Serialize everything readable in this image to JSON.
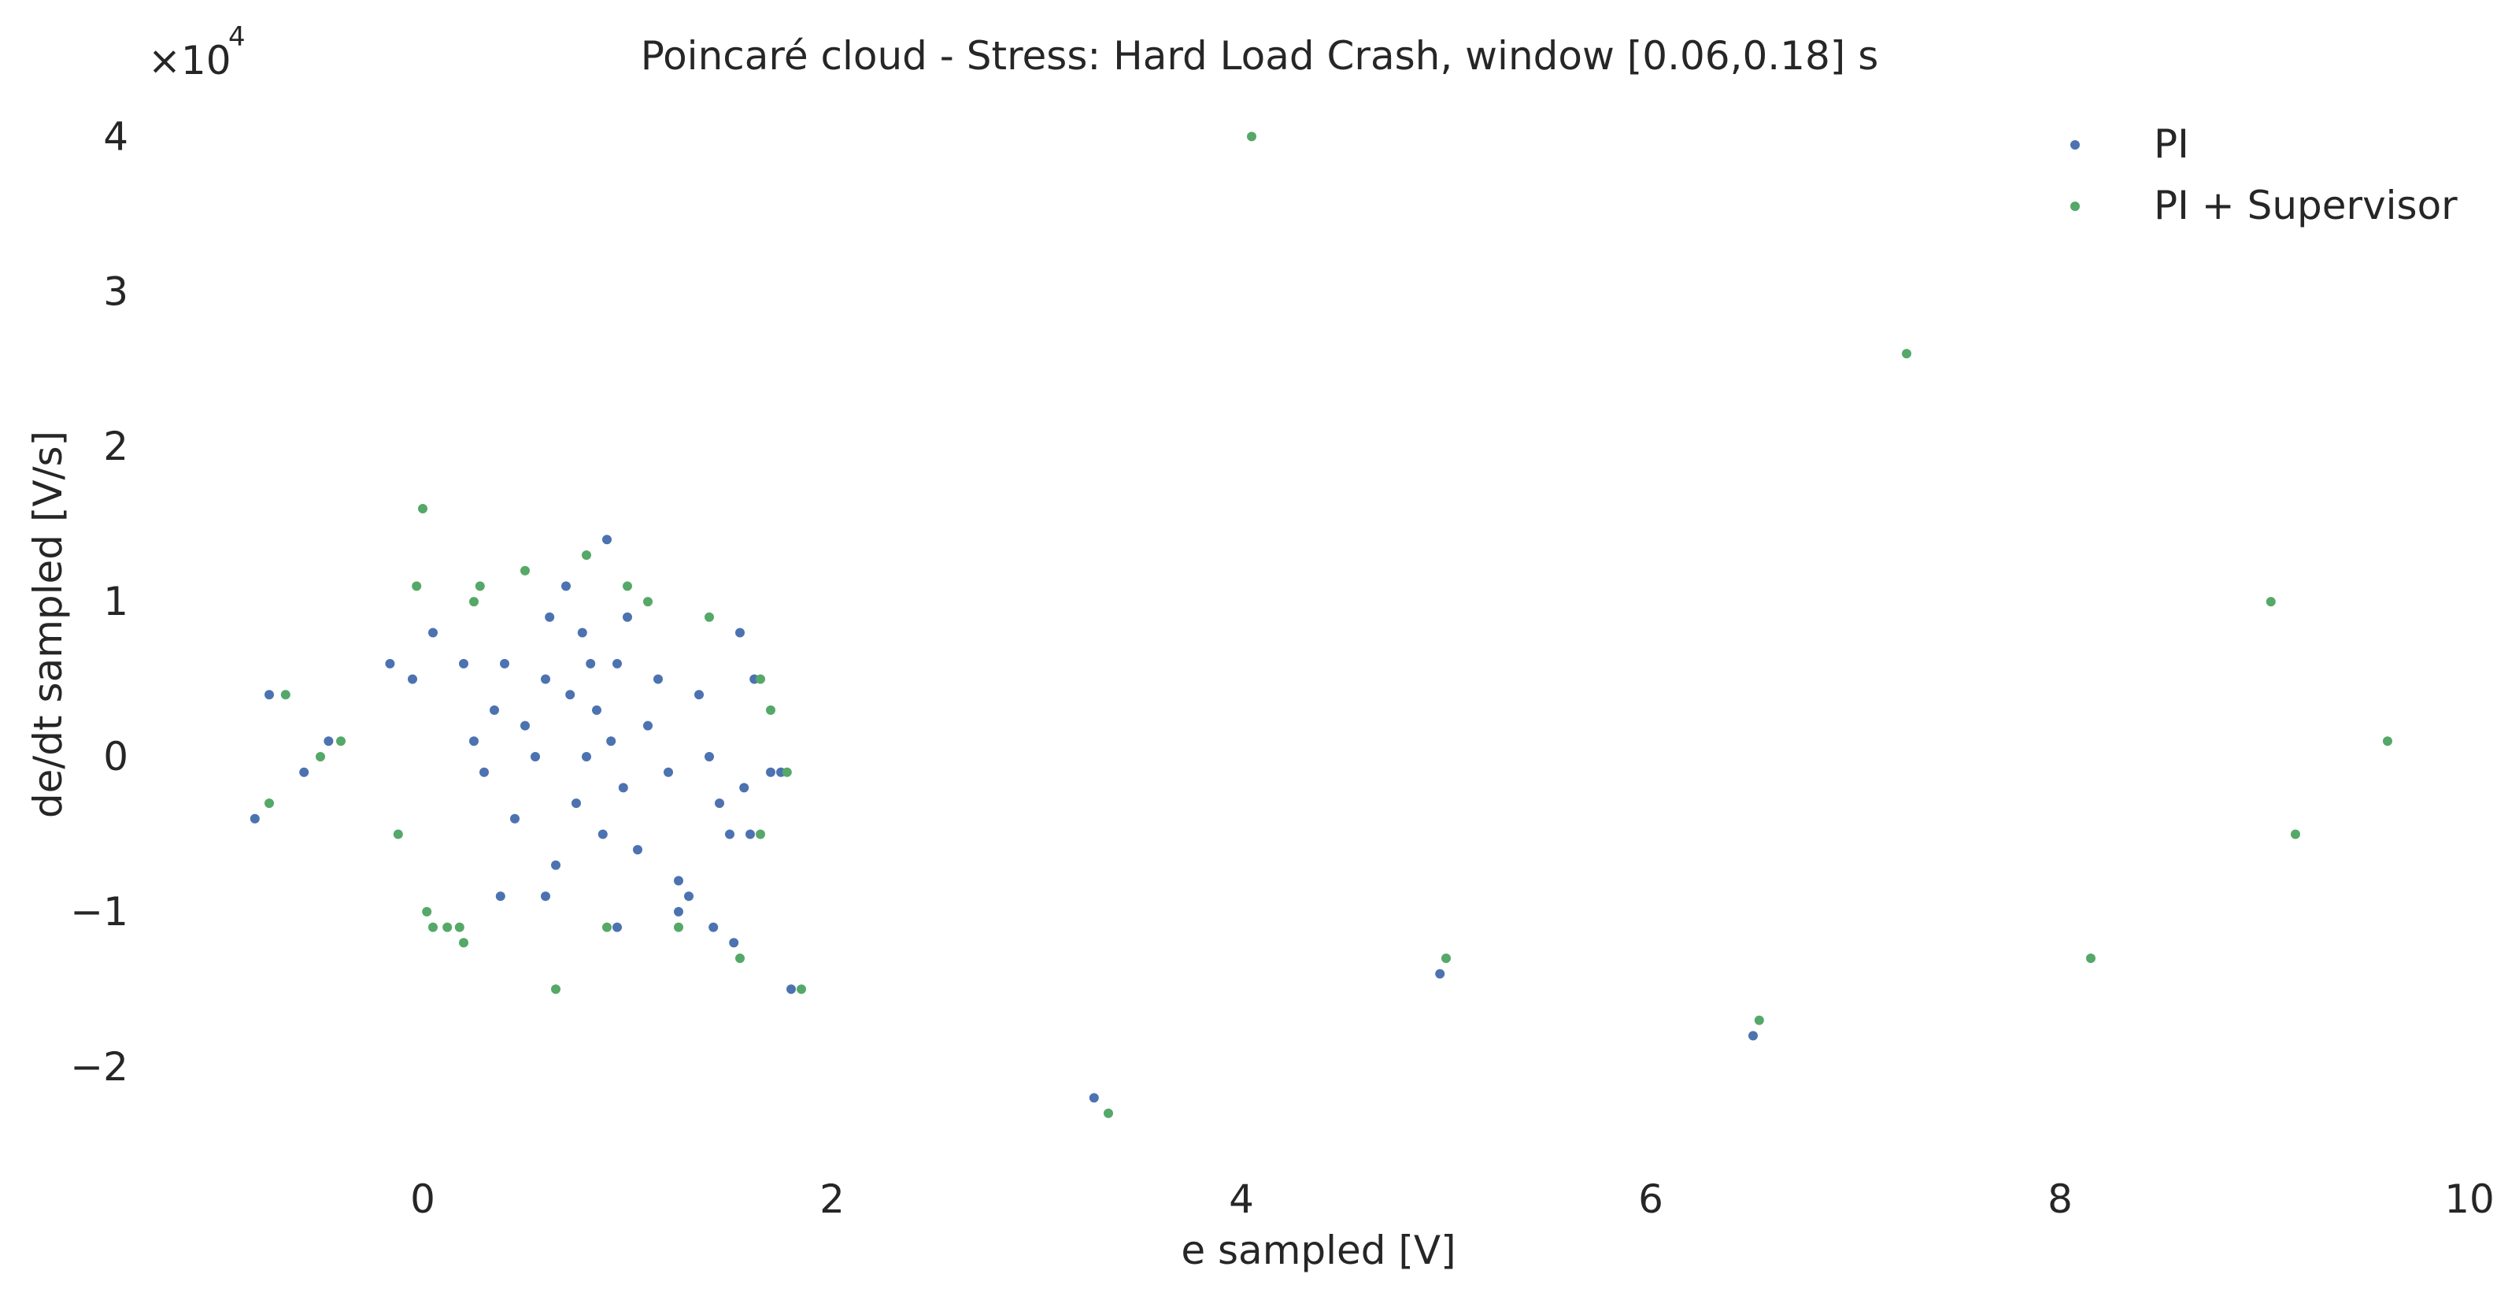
{
  "chart_data": {
    "type": "scatter",
    "title": "Poincaré cloud - Stress: Hard Load Crash, window [0.06,0.18] s",
    "xlabel": "e sampled [V]",
    "ylabel": "de/dt sampled [V/s]",
    "y_multiplier_label": "×10",
    "y_multiplier_exponent": "4",
    "xlim": [
      -1.5,
      10
    ],
    "ylim": [
      -27000,
      42000
    ],
    "xticks": [
      0,
      2,
      4,
      6,
      8,
      10
    ],
    "xtick_labels": [
      "0",
      "2",
      "4",
      "6",
      "8",
      "10"
    ],
    "yticks": [
      -20000,
      -10000,
      0,
      10000,
      20000,
      30000,
      40000
    ],
    "ytick_labels": [
      "−2",
      "−1",
      "0",
      "1",
      "2",
      "3",
      "4"
    ],
    "grid": false,
    "legend_position": "top-right",
    "series": [
      {
        "name": "PI",
        "color": "#4C72B0",
        "points": [
          [
            -0.82,
            -4000
          ],
          [
            -0.75,
            4000
          ],
          [
            -0.58,
            -1000
          ],
          [
            -0.46,
            1000
          ],
          [
            -0.16,
            6000
          ],
          [
            -0.05,
            5000
          ],
          [
            0.05,
            8000
          ],
          [
            0.2,
            6000
          ],
          [
            0.25,
            1000
          ],
          [
            0.3,
            -1000
          ],
          [
            0.35,
            3000
          ],
          [
            0.4,
            6000
          ],
          [
            0.45,
            -4000
          ],
          [
            0.5,
            2000
          ],
          [
            0.55,
            0
          ],
          [
            0.6,
            5000
          ],
          [
            0.62,
            9000
          ],
          [
            0.65,
            -7000
          ],
          [
            0.7,
            11000
          ],
          [
            0.72,
            4000
          ],
          [
            0.75,
            -3000
          ],
          [
            0.78,
            8000
          ],
          [
            0.8,
            0
          ],
          [
            0.82,
            6000
          ],
          [
            0.85,
            3000
          ],
          [
            0.88,
            -5000
          ],
          [
            0.9,
            14000
          ],
          [
            0.92,
            1000
          ],
          [
            0.95,
            6000
          ],
          [
            0.98,
            -2000
          ],
          [
            1.0,
            9000
          ],
          [
            1.05,
            -6000
          ],
          [
            1.1,
            2000
          ],
          [
            1.15,
            5000
          ],
          [
            1.2,
            -1000
          ],
          [
            1.25,
            -8000
          ],
          [
            1.3,
            -9000
          ],
          [
            1.35,
            4000
          ],
          [
            1.4,
            0
          ],
          [
            1.45,
            -3000
          ],
          [
            1.5,
            -5000
          ],
          [
            1.55,
            8000
          ],
          [
            0.38,
            -9000
          ],
          [
            0.6,
            -9000
          ],
          [
            0.95,
            -11000
          ],
          [
            1.25,
            -10000
          ],
          [
            1.42,
            -11000
          ],
          [
            1.52,
            -12000
          ],
          [
            1.57,
            -2000
          ],
          [
            1.6,
            -5000
          ],
          [
            1.62,
            5000
          ],
          [
            1.7,
            -1000
          ],
          [
            1.75,
            -1000
          ],
          [
            1.8,
            -15000
          ],
          [
            3.28,
            -22000
          ],
          [
            4.97,
            -14000
          ],
          [
            6.5,
            -18000
          ]
        ]
      },
      {
        "name": "PI + Supervisor",
        "color": "#55A868",
        "points": [
          [
            -0.75,
            -3000
          ],
          [
            -0.67,
            4000
          ],
          [
            -0.5,
            0
          ],
          [
            -0.4,
            1000
          ],
          [
            -0.12,
            -5000
          ],
          [
            -0.03,
            11000
          ],
          [
            0.0,
            16000
          ],
          [
            0.02,
            -10000
          ],
          [
            0.05,
            -11000
          ],
          [
            0.12,
            -11000
          ],
          [
            0.18,
            -11000
          ],
          [
            0.2,
            -12000
          ],
          [
            0.25,
            10000
          ],
          [
            0.28,
            11000
          ],
          [
            0.5,
            12000
          ],
          [
            0.65,
            -15000
          ],
          [
            0.8,
            13000
          ],
          [
            0.9,
            -11000
          ],
          [
            1.0,
            11000
          ],
          [
            1.1,
            10000
          ],
          [
            1.25,
            -11000
          ],
          [
            1.4,
            9000
          ],
          [
            1.55,
            -13000
          ],
          [
            1.65,
            5000
          ],
          [
            1.7,
            3000
          ],
          [
            1.65,
            -5000
          ],
          [
            1.78,
            -1000
          ],
          [
            1.85,
            -15000
          ],
          [
            3.35,
            -23000
          ],
          [
            4.05,
            40000
          ],
          [
            5.0,
            -13000
          ],
          [
            6.53,
            -17000
          ],
          [
            7.25,
            26000
          ],
          [
            8.15,
            -13000
          ],
          [
            9.03,
            10000
          ],
          [
            9.15,
            -5000
          ],
          [
            9.6,
            1000
          ]
        ]
      }
    ]
  }
}
